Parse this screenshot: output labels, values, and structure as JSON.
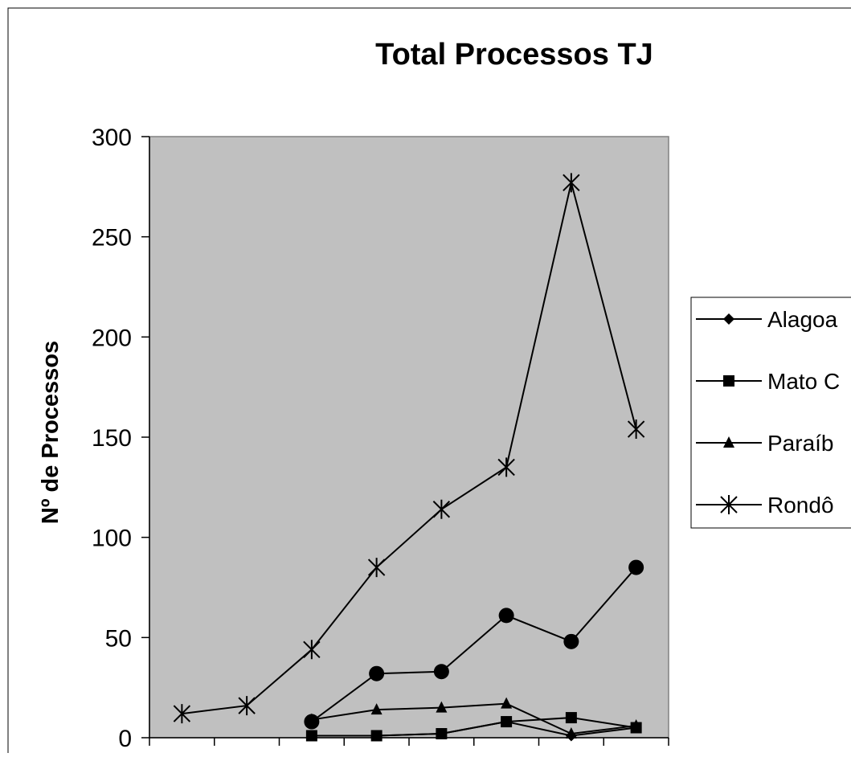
{
  "chart_data": {
    "type": "line",
    "title": "Total Processos TJ",
    "ylabel": "Nº de Processos",
    "xlabel": "",
    "ylim": [
      0,
      300
    ],
    "yticks": [
      0,
      50,
      100,
      150,
      200,
      250,
      300
    ],
    "x_positions": [
      1,
      2,
      3,
      4,
      5,
      6,
      7,
      8
    ],
    "grid": false,
    "legend_position": "right",
    "plot_background": "#c0c0c0",
    "line_color": "#000000",
    "series": [
      {
        "name": "Alagoa",
        "marker": "diamond",
        "values": [
          null,
          null,
          1,
          1,
          2,
          8,
          1,
          5
        ]
      },
      {
        "name": "Mato C",
        "marker": "square",
        "values": [
          null,
          null,
          1,
          1,
          2,
          8,
          10,
          5
        ]
      },
      {
        "name": "Paraíb",
        "marker": "triangle",
        "values": [
          null,
          null,
          9,
          14,
          15,
          17,
          2,
          6
        ]
      },
      {
        "name": "Rondô",
        "marker": "star",
        "values": [
          12,
          16,
          44,
          85,
          114,
          135,
          277,
          154
        ]
      },
      {
        "name": "",
        "marker": "circle",
        "values": [
          null,
          null,
          8,
          32,
          33,
          61,
          48,
          85
        ]
      }
    ]
  }
}
